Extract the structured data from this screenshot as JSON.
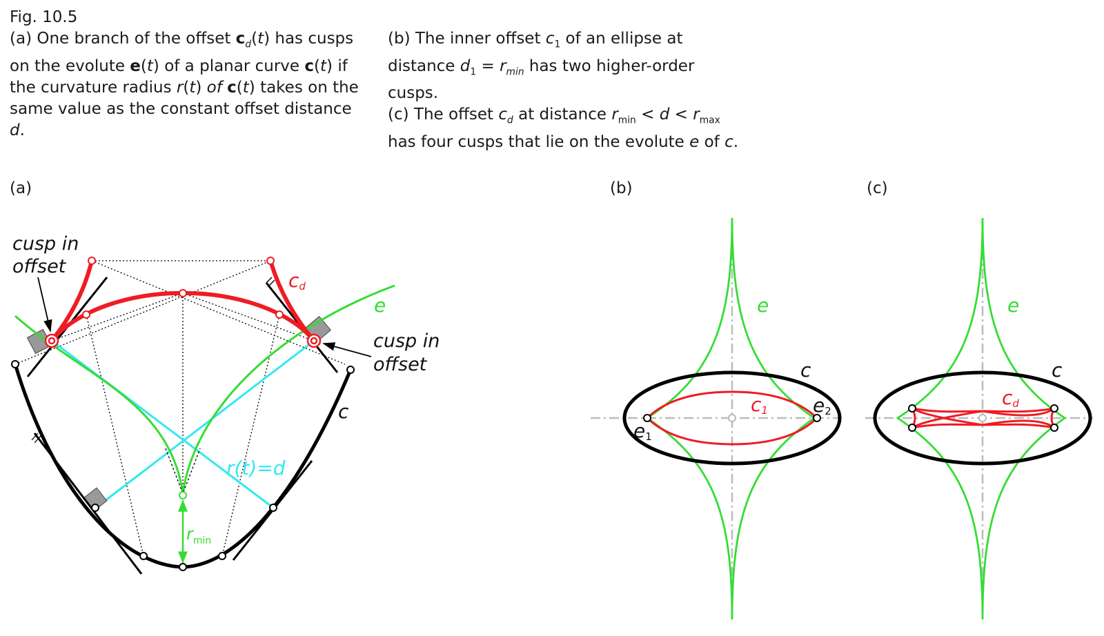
{
  "caption": {
    "fig_number": "Fig. 10.5",
    "a": [
      {
        "t": "(a) One branch of the offset "
      },
      {
        "t": "c",
        "b": true
      },
      {
        "t": "d",
        "sub": true,
        "i": true
      },
      {
        "t": "("
      },
      {
        "t": "t",
        "i": true
      },
      {
        "t": ") has cusps on the evolute "
      },
      {
        "t": "e",
        "b": true
      },
      {
        "t": "("
      },
      {
        "t": "t",
        "i": true
      },
      {
        "t": ") of a planar curve "
      },
      {
        "t": "c",
        "b": true
      },
      {
        "t": "("
      },
      {
        "t": "t",
        "i": true
      },
      {
        "t": ") if the curvature radius "
      },
      {
        "t": "r",
        "i": true
      },
      {
        "t": "("
      },
      {
        "t": "t",
        "i": true
      },
      {
        "t": ") "
      },
      {
        "t": "of",
        "i": true
      },
      {
        "t": " "
      },
      {
        "t": "c",
        "b": true
      },
      {
        "t": "("
      },
      {
        "t": "t",
        "i": true
      },
      {
        "t": ") takes on the same value as the constant offset distance "
      },
      {
        "t": "d",
        "i": true
      },
      {
        "t": "."
      }
    ],
    "b": [
      {
        "t": "(b) The inner offset "
      },
      {
        "t": "c",
        "i": true
      },
      {
        "t": "1",
        "sub": true
      },
      {
        "t": " of an ellipse at distance "
      },
      {
        "t": "d",
        "i": true
      },
      {
        "t": "1",
        "sub": true
      },
      {
        "t": " = "
      },
      {
        "t": "r",
        "i": true
      },
      {
        "t": "min",
        "sub": true,
        "i": true
      },
      {
        "t": " has two higher-order cusps."
      }
    ],
    "c": [
      {
        "t": "(c) The offset "
      },
      {
        "t": "c",
        "i": true
      },
      {
        "t": "d",
        "sub": true,
        "i": true
      },
      {
        "t": " at distance "
      },
      {
        "t": "r",
        "i": true
      },
      {
        "t": "min",
        "sub": true
      },
      {
        "t": " < "
      },
      {
        "t": "d",
        "i": true
      },
      {
        "t": " < "
      },
      {
        "t": "r",
        "i": true
      },
      {
        "t": "max",
        "sub": true
      },
      {
        "t": " has four cusps that lie on the evolute "
      },
      {
        "t": "e",
        "i": true
      },
      {
        "t": " of "
      },
      {
        "t": "c",
        "i": true
      },
      {
        "t": "."
      }
    ]
  },
  "panels": {
    "a": {
      "label": "(a)",
      "cusp_left": [
        "cusp in",
        "offset"
      ],
      "cusp_right": [
        "cusp in",
        "offset"
      ],
      "offset_label": "c",
      "offset_label_sub": "d",
      "evolute_label": "e",
      "curve_label": "c",
      "radius_label": "r(t)=d",
      "rmin_label": "r",
      "rmin_sub": "min"
    },
    "b": {
      "label": "(b)",
      "evolute_label": "e",
      "curve_label": "c",
      "offset_label": "c",
      "offset_label_sub": "1",
      "cusp1_label": "e",
      "cusp1_sub": "1",
      "cusp2_label": "e",
      "cusp2_sub": "2"
    },
    "c": {
      "label": "(c)",
      "evolute_label": "e",
      "curve_label": "c",
      "offset_label": "c",
      "offset_label_sub": "d"
    }
  },
  "colors": {
    "curve": "#000000",
    "offset": "#ee1c24",
    "evolute": "#33dd33",
    "normal": "#33e8f0",
    "axis": "#bbbbbb",
    "marker": "#999999"
  }
}
